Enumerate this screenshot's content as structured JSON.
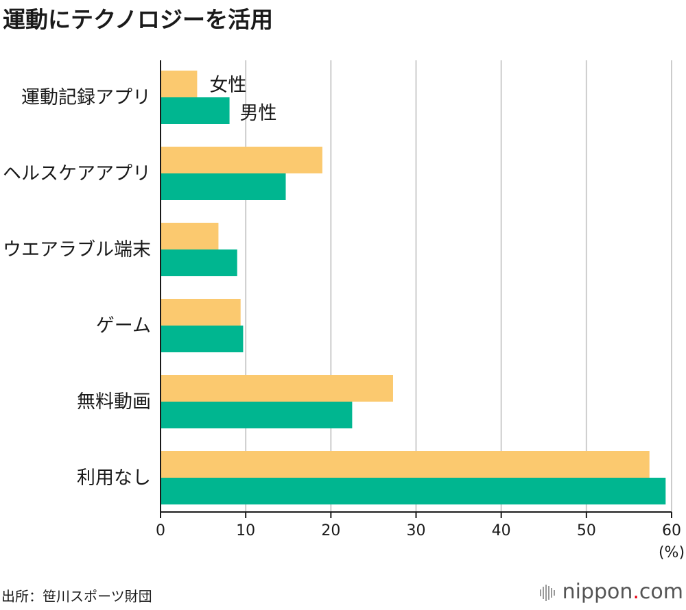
{
  "title": "運動にテクノロジーを活用",
  "source": "出所：笹川スポーツ財団",
  "logo": {
    "name": "nippon",
    "dot": ".",
    "suffix": "com",
    "accent": "#e60012"
  },
  "colors": {
    "female": "#fbc96f",
    "male": "#00b690",
    "grid": "#cccccc",
    "axis": "#1a1a1a"
  },
  "chart_data": {
    "type": "bar",
    "orientation": "horizontal",
    "categories": [
      "運動記録アプリ",
      "ヘルスケアアプリ",
      "ウエアラブル端末",
      "ゲーム",
      "無料動画",
      "利用なし"
    ],
    "series": [
      {
        "name": "女性",
        "values": [
          4.3,
          19.0,
          6.8,
          9.4,
          27.3,
          57.4
        ]
      },
      {
        "name": "男性",
        "values": [
          8.1,
          14.7,
          9.0,
          9.7,
          22.5,
          59.3
        ]
      }
    ],
    "xticks": [
      0,
      10,
      20,
      30,
      40,
      50,
      60
    ],
    "xlim": [
      0,
      60
    ],
    "xunit": "(%)",
    "grid": true
  }
}
